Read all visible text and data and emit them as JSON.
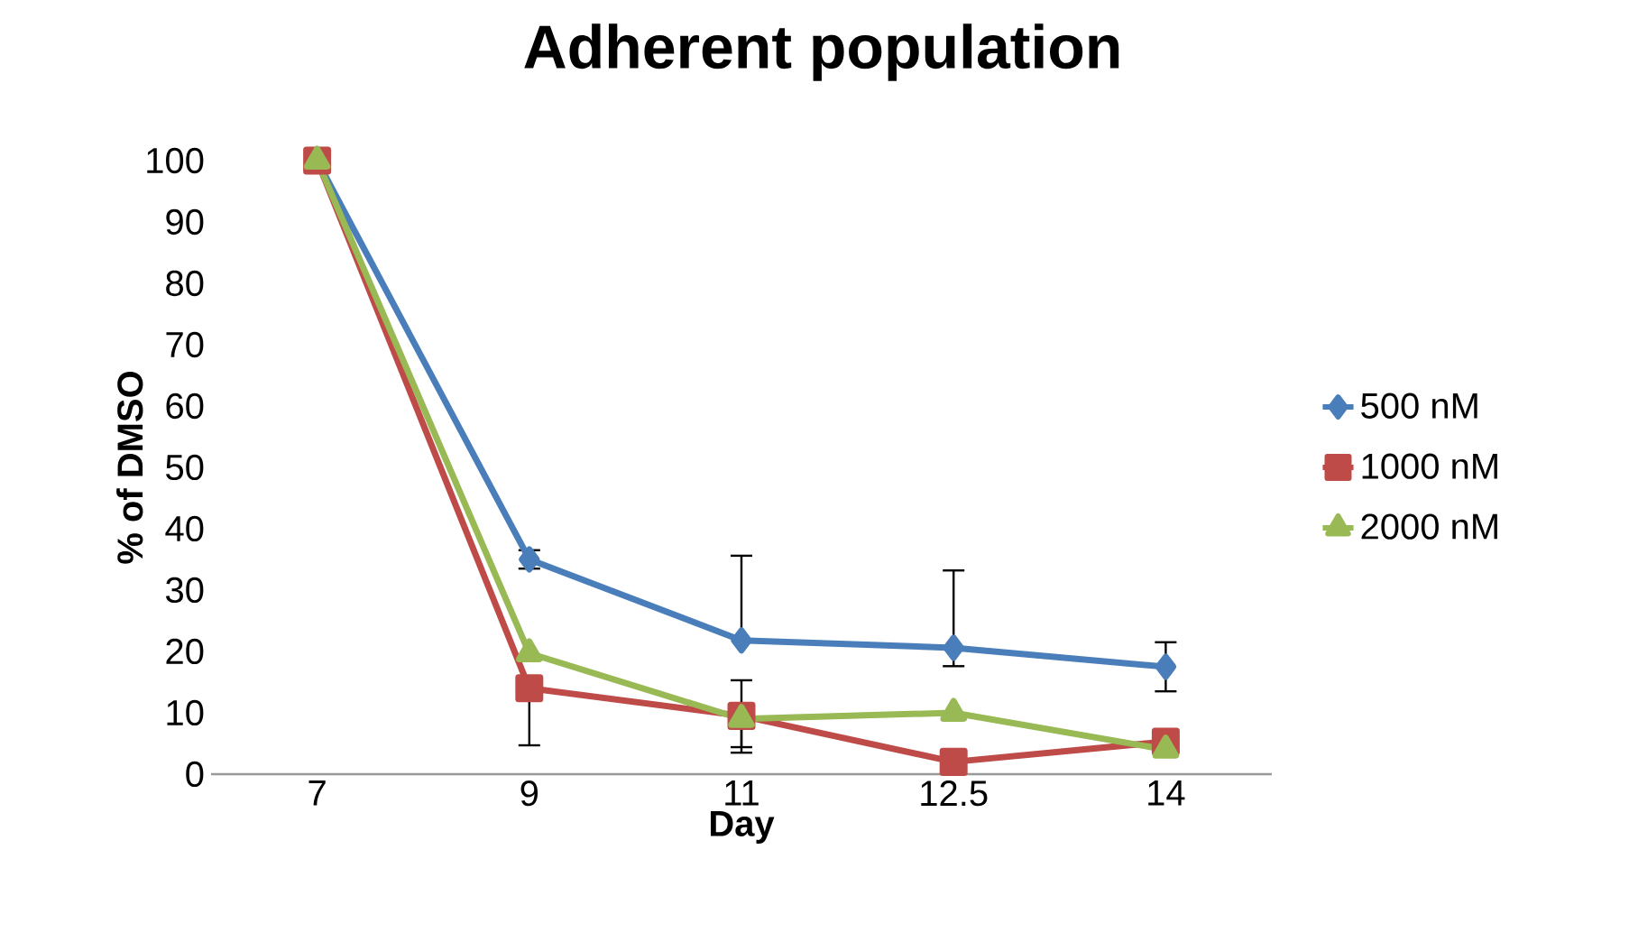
{
  "chart_data": {
    "type": "line",
    "title": "Adherent population",
    "xlabel": "Day",
    "ylabel": "% of DMSO",
    "categories": [
      "7",
      "9",
      "11",
      "12.5",
      "14"
    ],
    "series": [
      {
        "name": "500 nM",
        "color": "#4a7ebb",
        "marker": "diamond",
        "values": [
          100,
          35,
          21.8,
          20.6,
          17.5
        ],
        "errors": [
          null,
          [
            33.5,
            36.5
          ],
          [
            21.8,
            35.6
          ],
          [
            17.6,
            33.2
          ],
          [
            13.5,
            21.5
          ]
        ]
      },
      {
        "name": "1000 nM",
        "color": "#be4b48",
        "marker": "square",
        "values": [
          100,
          14,
          9.5,
          2,
          5.3
        ],
        "errors": [
          null,
          [
            4.7,
            14
          ],
          [
            3.5,
            9.5
          ],
          null,
          null
        ]
      },
      {
        "name": "2000 nM",
        "color": "#98b954",
        "marker": "triangle",
        "values": [
          100,
          19.7,
          9,
          10,
          4
        ],
        "errors": [
          null,
          null,
          [
            4.4,
            15.3
          ],
          null,
          null
        ]
      }
    ],
    "ylim": [
      0,
      100
    ],
    "yticks": [
      0,
      10,
      20,
      30,
      40,
      50,
      60,
      70,
      80,
      90,
      100
    ],
    "legend": "right",
    "grid": false
  }
}
